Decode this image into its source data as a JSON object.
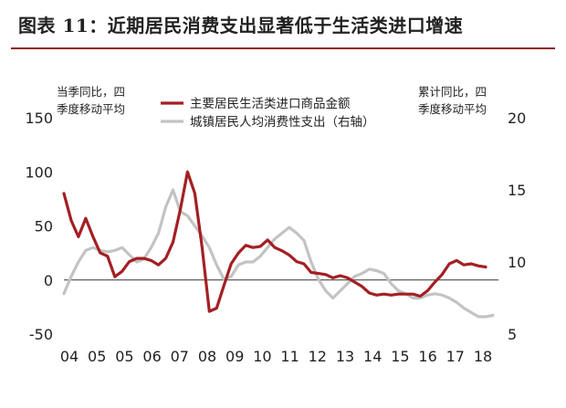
{
  "figure": {
    "title": "图表 11：近期居民消费支出显著低于生活类进口增速"
  },
  "chart_data": {
    "type": "line",
    "title": "",
    "xlabel": "",
    "left_axis": {
      "unit_lines": [
        "当季同比，四",
        "季度移动平均"
      ],
      "ylim": [
        -50,
        150
      ],
      "ticks": [
        -50,
        0,
        50,
        100,
        150
      ]
    },
    "right_axis": {
      "unit_lines": [
        "累计同比，四",
        "季度移动平均"
      ],
      "ylim": [
        5,
        20
      ],
      "ticks": [
        5,
        10,
        15,
        20
      ]
    },
    "categories": [
      "04",
      "05",
      "05",
      "06",
      "07",
      "08",
      "09",
      "10",
      "11",
      "12",
      "13",
      "14",
      "15",
      "16",
      "17",
      "18"
    ],
    "x_range": [
      2004.0,
      2018.75
    ],
    "legend_position": "top-center",
    "grid": false,
    "series": [
      {
        "name": "主要居民生活类进口商品金额",
        "axis": "left",
        "color": "#a31f24",
        "x": [
          2004.0,
          2004.25,
          2004.5,
          2004.75,
          2005.0,
          2005.25,
          2005.5,
          2005.75,
          2006.0,
          2006.25,
          2006.5,
          2006.75,
          2007.0,
          2007.25,
          2007.5,
          2007.75,
          2008.0,
          2008.25,
          2008.5,
          2008.75,
          2009.0,
          2009.25,
          2009.5,
          2009.75,
          2010.0,
          2010.25,
          2010.5,
          2010.75,
          2011.0,
          2011.25,
          2011.5,
          2011.75,
          2012.0,
          2012.25,
          2012.5,
          2012.75,
          2013.0,
          2013.25,
          2013.5,
          2013.75,
          2014.0,
          2014.25,
          2014.5,
          2014.75,
          2015.0,
          2015.25,
          2015.5,
          2015.75,
          2016.0,
          2016.25,
          2016.5,
          2016.75,
          2017.0,
          2017.25,
          2017.5,
          2017.75,
          2018.0,
          2018.25,
          2018.5
        ],
        "values": [
          80,
          55,
          40,
          57,
          40,
          25,
          22,
          3,
          8,
          17,
          20,
          20,
          18,
          14,
          20,
          35,
          65,
          100,
          80,
          30,
          -29,
          -26,
          -5,
          15,
          25,
          32,
          30,
          31,
          37,
          30,
          27,
          23,
          17,
          15,
          7,
          6,
          5,
          2,
          4,
          2,
          -2,
          -6,
          -12,
          -14,
          -13,
          -14,
          -13,
          -13,
          -13,
          -15,
          -10,
          -2,
          5,
          15,
          18,
          14,
          15,
          13,
          12
        ]
      },
      {
        "name": "城镇居民人均消费性支出（右轴）",
        "axis": "right",
        "color": "#c3c3c3",
        "x": [
          2004.0,
          2004.25,
          2004.5,
          2004.75,
          2005.0,
          2005.25,
          2005.5,
          2005.75,
          2006.0,
          2006.25,
          2006.5,
          2006.75,
          2007.0,
          2007.25,
          2007.5,
          2007.75,
          2008.0,
          2008.25,
          2008.5,
          2008.75,
          2009.0,
          2009.25,
          2009.5,
          2009.75,
          2010.0,
          2010.25,
          2010.5,
          2010.75,
          2011.0,
          2011.25,
          2011.5,
          2011.75,
          2012.0,
          2012.25,
          2012.5,
          2012.75,
          2013.0,
          2013.25,
          2013.5,
          2013.75,
          2014.0,
          2014.25,
          2014.5,
          2014.75,
          2015.0,
          2015.25,
          2015.5,
          2015.75,
          2016.0,
          2016.25,
          2016.5,
          2016.75,
          2017.0,
          2017.25,
          2017.5,
          2017.75,
          2018.0,
          2018.25,
          2018.5,
          2018.75
        ],
        "values": [
          7.8,
          9.0,
          10.0,
          10.8,
          11.0,
          10.8,
          10.7,
          10.8,
          11.0,
          10.5,
          10.0,
          10.2,
          11.0,
          12.0,
          13.8,
          15.0,
          13.5,
          13.2,
          12.5,
          11.8,
          11.0,
          9.8,
          8.8,
          9.0,
          9.8,
          10.0,
          10.0,
          10.4,
          11.0,
          11.6,
          12.0,
          12.4,
          12.0,
          11.5,
          10.0,
          8.8,
          8.0,
          7.5,
          8.0,
          8.5,
          9.0,
          9.2,
          9.5,
          9.4,
          9.2,
          8.5,
          8.0,
          7.8,
          7.5,
          7.5,
          7.7,
          7.8,
          7.7,
          7.5,
          7.2,
          6.8,
          6.5,
          6.2,
          6.2,
          6.3
        ]
      }
    ]
  }
}
